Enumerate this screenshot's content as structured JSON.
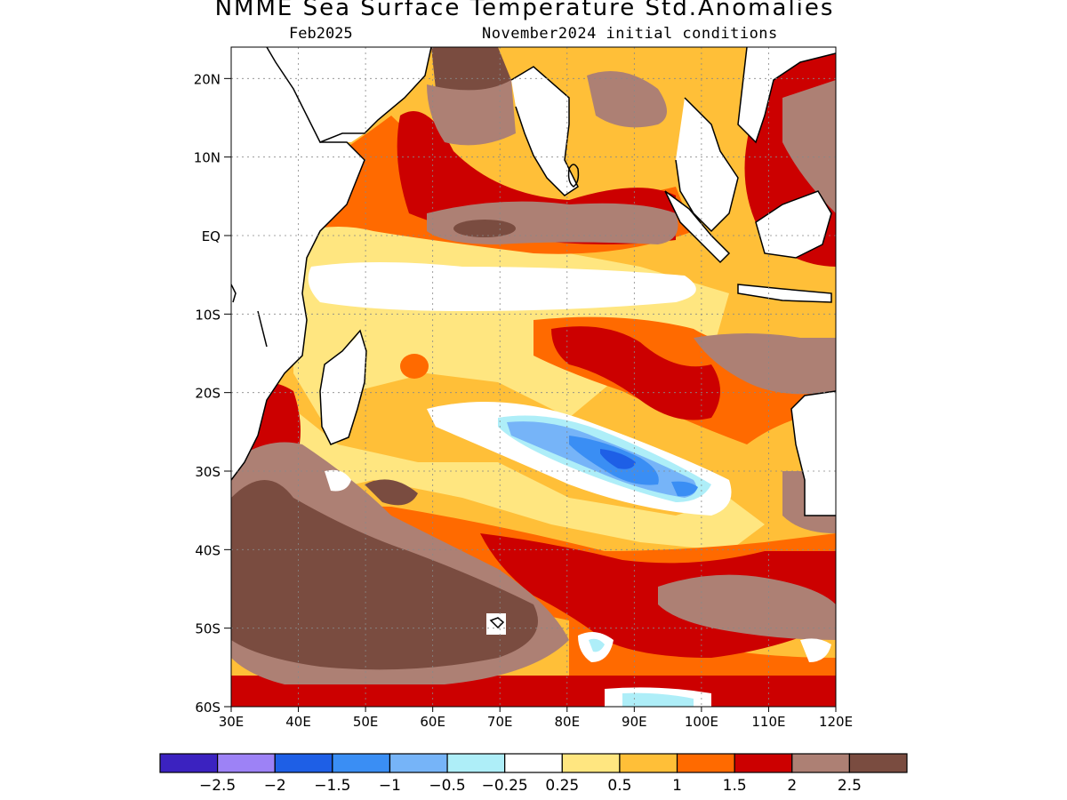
{
  "title": "NMME Sea Surface Temperature Std.Anomalies",
  "subtitle_left": "Feb2025",
  "subtitle_right": "November2024 initial conditions",
  "map": {
    "lon_range": [
      30,
      120
    ],
    "lat_range": [
      -60,
      24
    ],
    "lat_ticks": [
      "20N",
      "10N",
      "EQ",
      "10S",
      "20S",
      "30S",
      "40S",
      "50S",
      "60S"
    ],
    "lon_ticks": [
      "30E",
      "40E",
      "50E",
      "60E",
      "70E",
      "80E",
      "90E",
      "100E",
      "110E",
      "120E"
    ],
    "grid_lines": "dotted"
  },
  "colorbar": {
    "colors": [
      "#3b22c0",
      "#9d82f6",
      "#1e5fe6",
      "#3a8ef4",
      "#76b4f8",
      "#aeeef8",
      "#ffffff",
      "#ffe680",
      "#ffbf38",
      "#ff6a00",
      "#cc0000",
      "#ad8074",
      "#7a4c40"
    ],
    "labels": [
      "−2.5",
      "−2",
      "−1.5",
      "−1",
      "−0.5",
      "−0.25",
      "0.25",
      "0.5",
      "1",
      "1.5",
      "2",
      "2.5"
    ]
  }
}
